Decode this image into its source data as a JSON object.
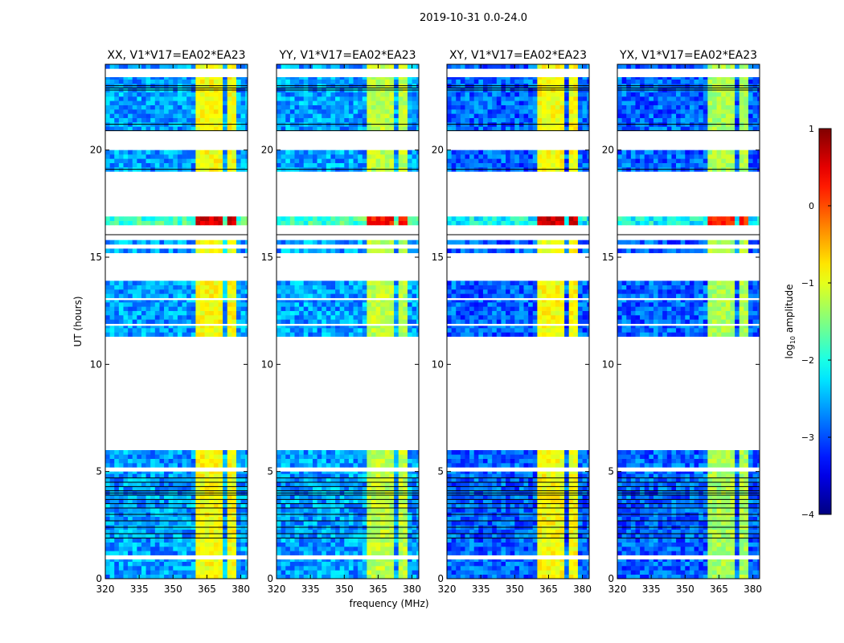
{
  "chart_data": {
    "type": "heatmap",
    "suptitle": "2019-10-31 0.0-24.0",
    "xlabel": "frequency (MHz)",
    "ylabel": "UT (hours)",
    "xlim": [
      320,
      383
    ],
    "ylim": [
      0,
      24
    ],
    "xticks": [
      320,
      335,
      350,
      365,
      380
    ],
    "yticks": [
      0,
      5,
      10,
      15,
      20
    ],
    "colorbar": {
      "label_prefix": "log",
      "label_sub": "10",
      "label_suffix": " amplitude",
      "range": [
        -4,
        1
      ],
      "ticks": [
        1,
        0,
        -1,
        -2,
        -3,
        -4
      ],
      "tick_labels": [
        "1",
        "0",
        "−1",
        "−2",
        "−3",
        "−4"
      ],
      "colormap": "jet"
    },
    "panels": [
      {
        "title": "XX, V1*V17=EA02*EA23",
        "base_log_amp": -2.6,
        "rfi_log_amp": -0.9
      },
      {
        "title": "YY, V1*V17=EA02*EA23",
        "base_log_amp": -2.6,
        "rfi_log_amp": -1.2
      },
      {
        "title": "XY, V1*V17=EA02*EA23",
        "base_log_amp": -2.9,
        "rfi_log_amp": -0.9
      },
      {
        "title": "YX, V1*V17=EA02*EA23",
        "base_log_amp": -2.9,
        "rfi_log_amp": -1.3
      }
    ],
    "data_segments_hours": [
      [
        0.0,
        0.9
      ],
      [
        1.1,
        5.0
      ],
      [
        5.2,
        6.0
      ],
      [
        11.3,
        11.8
      ],
      [
        11.9,
        13.0
      ],
      [
        13.1,
        13.9
      ],
      [
        15.2,
        15.4
      ],
      [
        15.6,
        15.8
      ],
      [
        16.5,
        16.9
      ],
      [
        19.0,
        20.0
      ],
      [
        20.9,
        23.4
      ],
      [
        23.8,
        24.0
      ]
    ],
    "bright_segment_hours": [
      [
        16.5,
        16.9
      ]
    ],
    "rfi_channels_mhz": [
      [
        360,
        364
      ],
      [
        364,
        368
      ],
      [
        369,
        372
      ],
      [
        374,
        379
      ]
    ],
    "flagged_lines_hours": [
      1.9,
      2.1,
      2.4,
      2.7,
      3.0,
      3.3,
      3.5,
      3.7,
      3.9,
      4.0,
      4.1,
      4.3,
      4.5,
      4.7,
      16.05,
      19.1,
      22.8,
      22.9,
      23.0,
      21.2,
      20.9
    ]
  }
}
